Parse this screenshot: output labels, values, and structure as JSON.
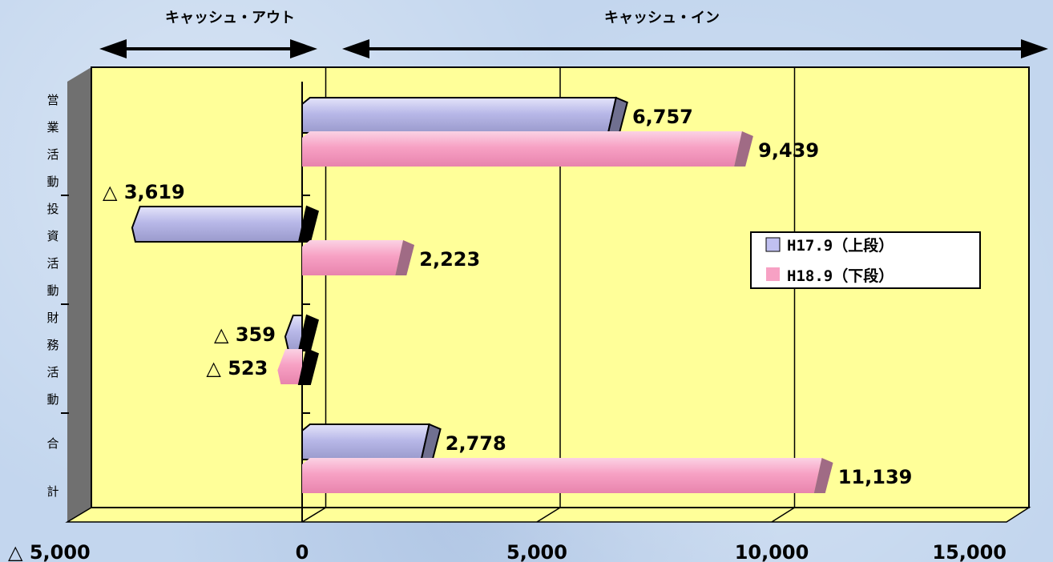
{
  "chart_data": {
    "type": "bar",
    "orientation": "horizontal",
    "categories": [
      "営業活動",
      "投資活動",
      "財務活動",
      "合計"
    ],
    "series": [
      {
        "name": "H17.9（上段）",
        "values": [
          6757,
          -3619,
          -359,
          2778
        ],
        "color": "#b8b8e8",
        "shade": "#707090"
      },
      {
        "name": "H18.9（下段）",
        "values": [
          9439,
          2223,
          -523,
          11139
        ],
        "color": "#f7a1c4",
        "shade": "#a06b85"
      }
    ],
    "value_labels": [
      [
        "6,757",
        "△ 3,619",
        "△ 359",
        "2,778"
      ],
      [
        "9,439",
        "2,223",
        "△ 523",
        "11,139"
      ]
    ],
    "xlim": [
      -5000,
      15000
    ],
    "x_ticks": [
      -5000,
      0,
      5000,
      10000,
      15000
    ],
    "x_tick_labels": [
      "△ 5,000",
      "0",
      "5,000",
      "10,000",
      "15,000"
    ],
    "grid": true,
    "background_color": "#ffff99",
    "legend_position": "right",
    "arrow_left_label": "キャッシュ・アウト",
    "arrow_right_label": "キャッシュ・イン"
  }
}
